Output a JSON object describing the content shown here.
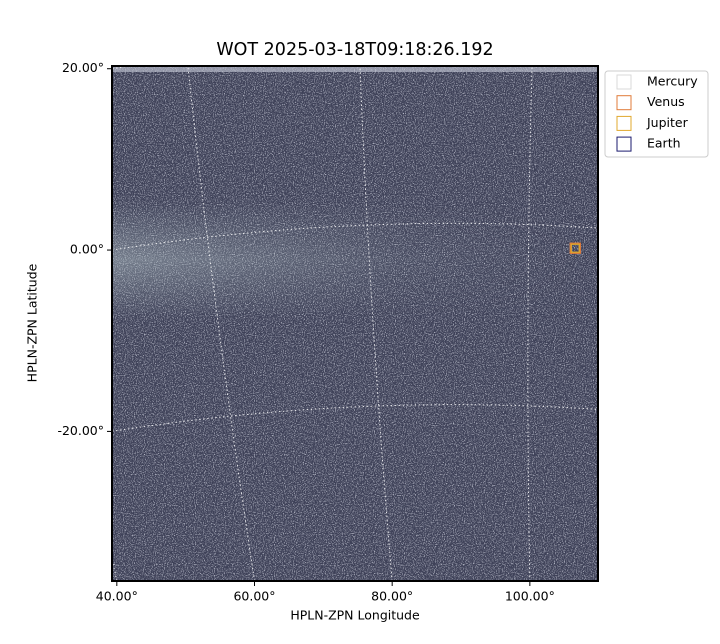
{
  "chart_data": {
    "type": "image",
    "title": "WOT 2025-03-18T09:18:26.192",
    "xlabel": "HPLN-ZPN Longitude",
    "ylabel": "HPLN-ZPN Latitude",
    "xlim": [
      39.3,
      109.9
    ],
    "ylim": [
      -36.5,
      20.3
    ],
    "xticks": [
      {
        "value": 40,
        "label": "40.00°"
      },
      {
        "value": 60,
        "label": "60.00°"
      },
      {
        "value": 80,
        "label": "80.00°"
      },
      {
        "value": 100,
        "label": "100.00°"
      }
    ],
    "yticks": [
      {
        "value": 20,
        "label": "20.00°"
      },
      {
        "value": 0,
        "label": "0.00°"
      },
      {
        "value": -20,
        "label": "-20.00°"
      }
    ],
    "grid": true,
    "legend": "upper right",
    "series": [
      {
        "name": "Mercury",
        "color": "#d9d9d9",
        "x": [],
        "y": []
      },
      {
        "name": "Venus",
        "color": "#e07b39",
        "x": [
          106.6
        ],
        "y": [
          0.2
        ]
      },
      {
        "name": "Jupiter",
        "color": "#e0a82e",
        "x": [
          106.6
        ],
        "y": [
          0.2
        ]
      },
      {
        "name": "Earth",
        "color": "#1a1a6e",
        "x": [],
        "y": []
      }
    ]
  }
}
